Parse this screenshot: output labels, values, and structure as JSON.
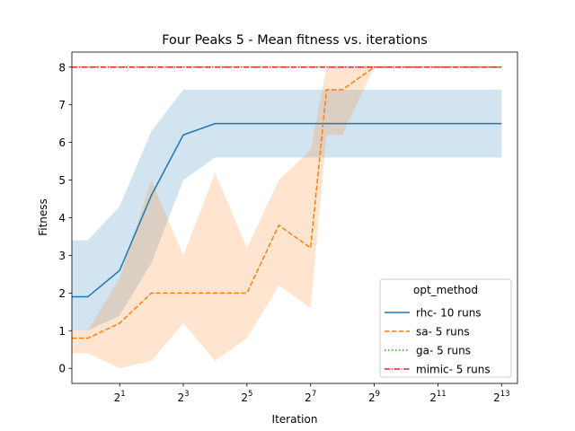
{
  "chart_data": {
    "type": "line",
    "title": "Four Peaks 5 - Mean fitness vs. iterations",
    "xlabel": "Iteration",
    "ylabel": "Fitness",
    "x_scale": "log2",
    "xlim": [
      0.707,
      11585
    ],
    "ylim": [
      -0.4,
      8.4
    ],
    "xtick_exponents": [
      1,
      3,
      5,
      7,
      9,
      11,
      13
    ],
    "xtick_base": "2",
    "yticks": [
      0,
      1,
      2,
      3,
      4,
      5,
      6,
      7,
      8
    ],
    "legend": {
      "title": "opt_method",
      "placement": "lower-right"
    },
    "series": [
      {
        "name": "rhc- 10 runs",
        "color": "#1f77b4",
        "style": "solid",
        "x": [
          0.707,
          1,
          2,
          4,
          8,
          16,
          32,
          64,
          128,
          256,
          512,
          1024,
          2048,
          4096,
          8192
        ],
        "values": [
          1.9,
          1.9,
          2.6,
          4.6,
          6.2,
          6.5,
          6.5,
          6.5,
          6.5,
          6.5,
          6.5,
          6.5,
          6.5,
          6.5,
          6.5
        ],
        "lower": [
          1.0,
          1.0,
          1.4,
          2.8,
          5.0,
          5.6,
          5.6,
          5.6,
          5.6,
          5.6,
          5.6,
          5.6,
          5.6,
          5.6,
          5.6
        ],
        "upper": [
          3.4,
          3.4,
          4.3,
          6.3,
          7.4,
          7.4,
          7.4,
          7.4,
          7.4,
          7.4,
          7.4,
          7.4,
          7.4,
          7.4,
          7.4
        ]
      },
      {
        "name": "sa- 5 runs",
        "color": "#ff7f0e",
        "style": "dashed",
        "x": [
          0.707,
          1,
          2,
          4,
          8,
          16,
          32,
          64,
          128,
          181,
          256,
          512,
          1024,
          2048,
          4096,
          8192
        ],
        "values": [
          0.8,
          0.8,
          1.2,
          2.0,
          2.0,
          2.0,
          2.0,
          3.8,
          3.2,
          7.4,
          7.4,
          8.0,
          8.0,
          8.0,
          8.0,
          8.0
        ],
        "lower": [
          0.4,
          0.4,
          0.0,
          0.2,
          1.2,
          0.2,
          0.8,
          2.2,
          1.6,
          6.2,
          6.2,
          8.0,
          8.0,
          8.0,
          8.0,
          8.0
        ],
        "upper": [
          1.0,
          1.0,
          2.4,
          5.0,
          3.0,
          5.2,
          3.2,
          5.0,
          5.8,
          8.0,
          8.0,
          8.0,
          8.0,
          8.0,
          8.0,
          8.0
        ]
      },
      {
        "name": "ga- 5 runs",
        "color": "#2ca02c",
        "style": "dotted",
        "x": [
          0.707,
          8192
        ],
        "values": [
          8.0,
          8.0
        ]
      },
      {
        "name": "mimic- 5 runs",
        "color": "#d62728",
        "style": "dashdot",
        "x": [
          0.707,
          8192
        ],
        "values": [
          8.0,
          8.0
        ]
      }
    ]
  }
}
